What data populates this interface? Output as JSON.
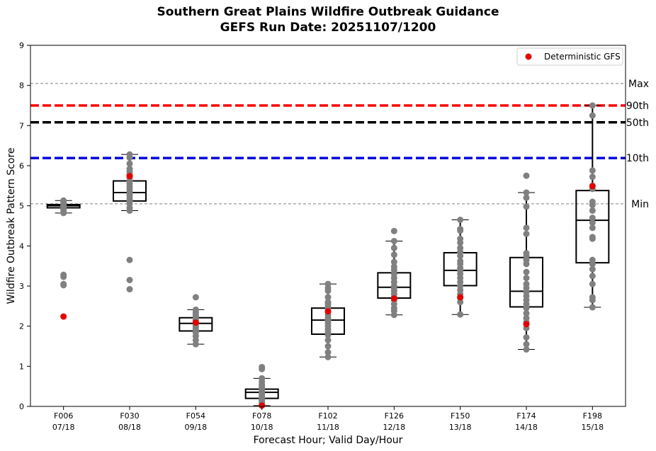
{
  "chart_data": {
    "type": "box",
    "title": "Southern Great Plains Wildfire Outbreak Guidance",
    "subtitle": "GEFS Run Date: 20251107/1200",
    "xlabel": "Forecast Hour; Valid Day/Hour",
    "ylabel": "Wildfire Outbreak Pattern Score",
    "ylim": [
      0,
      9
    ],
    "yticks": [
      "0",
      "1",
      "2",
      "3",
      "4",
      "5",
      "6",
      "7",
      "8",
      "9"
    ],
    "categories": [
      {
        "hour": "F006",
        "valid": "07/18"
      },
      {
        "hour": "F030",
        "valid": "08/18"
      },
      {
        "hour": "F054",
        "valid": "09/18"
      },
      {
        "hour": "F078",
        "valid": "10/18"
      },
      {
        "hour": "F102",
        "valid": "11/18"
      },
      {
        "hour": "F126",
        "valid": "12/18"
      },
      {
        "hour": "F150",
        "valid": "13/18"
      },
      {
        "hour": "F174",
        "valid": "14/18"
      },
      {
        "hour": "F198",
        "valid": "15/18"
      }
    ],
    "reference_lines": [
      {
        "label": "Max",
        "value": 8.05,
        "color": "#808080",
        "style": "thin"
      },
      {
        "label": "90th",
        "value": 7.5,
        "color": "#ff0000",
        "style": "thick"
      },
      {
        "label": "50th",
        "value": 7.08,
        "color": "#000000",
        "style": "thick"
      },
      {
        "label": "10th",
        "value": 6.19,
        "color": "#0000dd",
        "style": "thick"
      },
      {
        "label": "Min",
        "value": 5.05,
        "color": "#808080",
        "style": "thin"
      }
    ],
    "boxes": [
      {
        "whislo": 4.82,
        "q1": 4.95,
        "med": 5.0,
        "q3": 5.03,
        "whishi": 5.13
      },
      {
        "whislo": 4.88,
        "q1": 5.12,
        "med": 5.33,
        "q3": 5.62,
        "whishi": 6.28
      },
      {
        "whislo": 1.55,
        "q1": 1.88,
        "med": 2.07,
        "q3": 2.21,
        "whishi": 2.41
      },
      {
        "whislo": 0.02,
        "q1": 0.2,
        "med": 0.35,
        "q3": 0.43,
        "whishi": 0.7
      },
      {
        "whislo": 1.23,
        "q1": 1.8,
        "med": 2.15,
        "q3": 2.45,
        "whishi": 3.05
      },
      {
        "whislo": 2.28,
        "q1": 2.7,
        "med": 2.97,
        "q3": 3.33,
        "whishi": 4.12
      },
      {
        "whislo": 2.29,
        "q1": 3.01,
        "med": 3.39,
        "q3": 3.83,
        "whishi": 4.65
      },
      {
        "whislo": 1.42,
        "q1": 2.48,
        "med": 2.87,
        "q3": 3.71,
        "whishi": 5.33
      },
      {
        "whislo": 2.47,
        "q1": 3.58,
        "med": 4.64,
        "q3": 5.38,
        "whishi": 7.5
      }
    ],
    "members": [
      [
        5.13,
        5.1,
        5.07,
        5.05,
        5.03,
        5.02,
        5.0,
        4.99,
        4.97,
        4.95,
        4.93,
        4.9,
        4.87,
        4.82,
        3.28,
        3.23,
        3.05,
        3.02
      ],
      [
        6.28,
        6.2,
        6.05,
        5.92,
        5.85,
        5.78,
        5.7,
        5.62,
        5.55,
        5.48,
        5.42,
        5.35,
        5.3,
        5.25,
        5.18,
        5.12,
        5.05,
        4.95,
        4.88,
        3.65,
        3.15,
        2.92
      ],
      [
        2.72,
        2.41,
        2.35,
        2.3,
        2.25,
        2.2,
        2.15,
        2.1,
        2.05,
        2.0,
        1.95,
        1.9,
        1.85,
        1.75,
        1.65,
        1.55
      ],
      [
        0.98,
        0.93,
        0.7,
        0.62,
        0.55,
        0.5,
        0.45,
        0.42,
        0.38,
        0.35,
        0.3,
        0.25,
        0.2,
        0.15,
        0.1,
        0.05
      ],
      [
        3.05,
        2.95,
        2.88,
        2.72,
        2.6,
        2.55,
        2.48,
        2.42,
        2.35,
        2.28,
        2.2,
        2.15,
        2.08,
        2.0,
        1.92,
        1.85,
        1.78,
        1.65,
        1.5,
        1.35,
        1.23
      ],
      [
        4.37,
        4.12,
        3.95,
        3.78,
        3.6,
        3.48,
        3.4,
        3.3,
        3.2,
        3.1,
        3.0,
        2.95,
        2.88,
        2.8,
        2.72,
        2.65,
        2.55,
        2.45,
        2.38,
        2.28
      ],
      [
        4.65,
        4.42,
        4.38,
        4.18,
        4.08,
        3.95,
        3.85,
        3.75,
        3.62,
        3.55,
        3.45,
        3.38,
        3.3,
        3.2,
        3.1,
        3.0,
        2.9,
        2.8,
        2.7,
        2.6,
        2.29
      ],
      [
        5.75,
        5.33,
        5.2,
        4.98,
        4.45,
        4.3,
        3.82,
        3.75,
        3.65,
        3.55,
        3.35,
        3.2,
        3.05,
        2.95,
        2.85,
        2.75,
        2.65,
        2.55,
        2.45,
        2.32,
        2.2,
        2.1,
        1.95,
        1.72,
        1.55,
        1.42
      ],
      [
        7.5,
        7.25,
        5.88,
        5.72,
        5.5,
        5.42,
        5.1,
        5.02,
        4.88,
        4.7,
        4.58,
        4.45,
        4.22,
        4.18,
        3.65,
        3.55,
        3.42,
        3.25,
        3.05,
        2.72,
        2.65,
        2.47
      ]
    ],
    "deterministic_gfs": [
      2.24,
      5.74,
      2.09,
      0.02,
      2.37,
      2.69,
      2.72,
      2.05,
      5.49
    ],
    "legend": {
      "label": "Deterministic GFS",
      "color": "#e50000",
      "position": "top-right"
    },
    "colors": {
      "members": "#808080",
      "box": "#000000"
    }
  }
}
